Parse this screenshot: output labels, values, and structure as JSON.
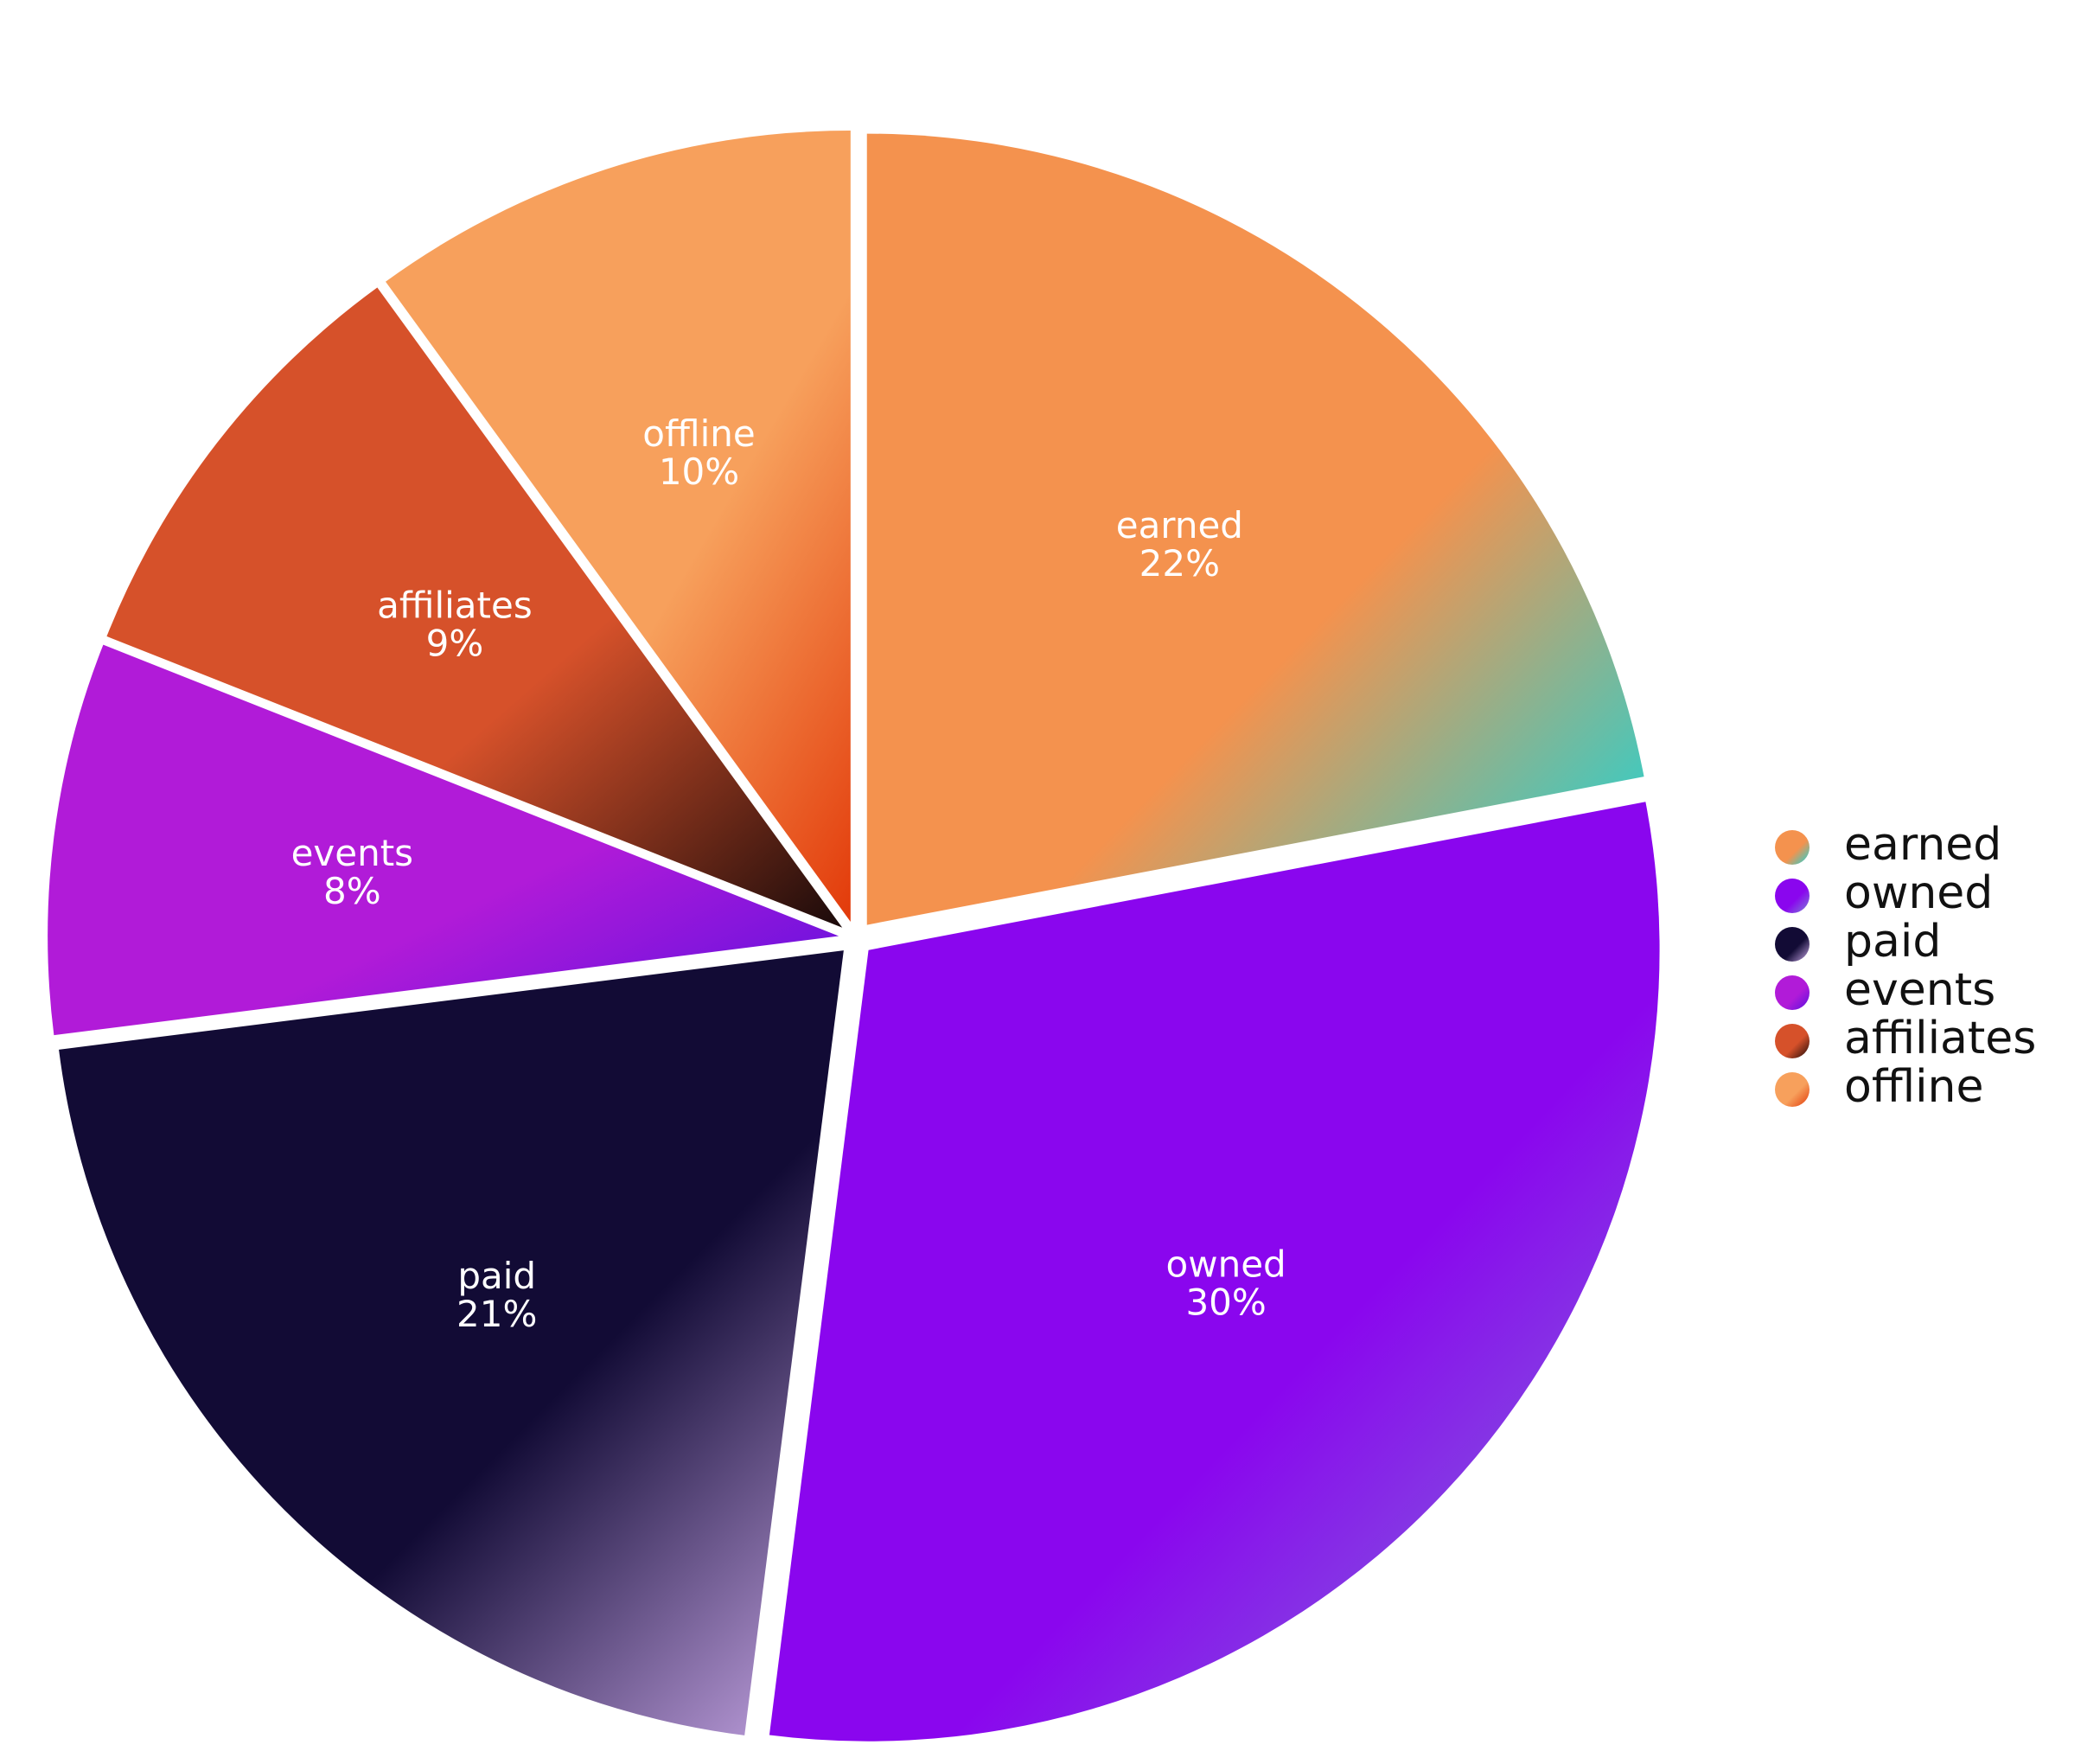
{
  "chart_data": {
    "type": "pie",
    "categories": [
      "earned",
      "owned",
      "paid",
      "events",
      "affiliates",
      "offline"
    ],
    "values": [
      22,
      30,
      21,
      8,
      9,
      10
    ],
    "value_labels": [
      "22%",
      "30%",
      "21%",
      "8%",
      "9%",
      "10%"
    ],
    "colors": [
      "#f4924e",
      "#8a06ee",
      "#120b35",
      "#b11bd8",
      "#d6512a",
      "#f7a05c"
    ],
    "legend": "right"
  }
}
